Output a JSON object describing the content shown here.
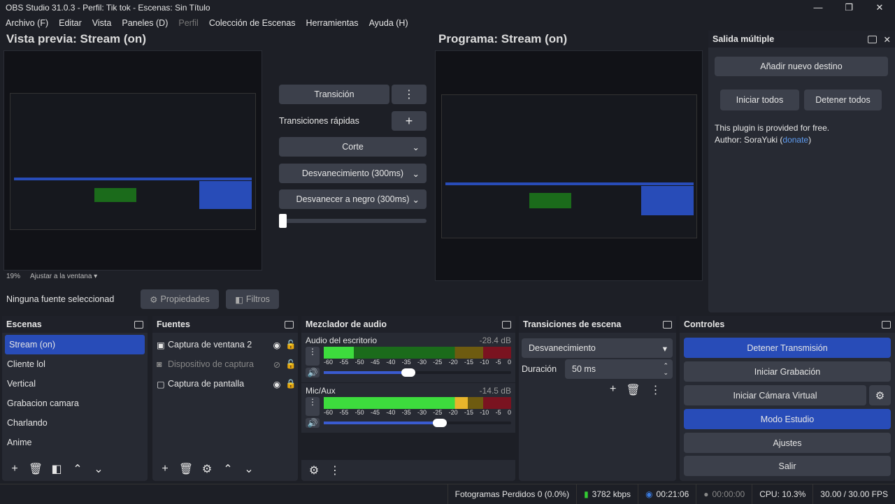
{
  "window": {
    "title": "OBS Studio 31.0.3 - Perfil: Tik tok - Escenas: Sin Título",
    "minimize": "—",
    "maximize": "❐",
    "close": "✕"
  },
  "menu": [
    "Archivo (F)",
    "Editar",
    "Vista",
    "Paneles (D)",
    "Perfil",
    "Colección de Escenas",
    "Herramientas",
    "Ayuda (H)"
  ],
  "preview": {
    "title": "Vista previa: Stream (on)",
    "zoom": "19%",
    "fit": "Ajustar a la ventana"
  },
  "program": {
    "title": "Programa: Stream (on)"
  },
  "transition_panel": {
    "transition": "Transición",
    "quick": "Transiciones rápidas",
    "items": [
      "Corte",
      "Desvanecimiento (300ms)",
      "Desvanecer a negro (300ms)"
    ]
  },
  "multi_output": {
    "title": "Salida múltiple",
    "add": "Añadir nuevo destino",
    "start_all": "Iniciar todos",
    "stop_all": "Detener todos",
    "info": "This plugin is provided for free.",
    "author": "Author: SoraYuki (",
    "donate": "donate",
    "close_paren": ")"
  },
  "source_bar": {
    "none": "Ninguna fuente seleccionad",
    "properties": "Propiedades",
    "filters": "Filtros"
  },
  "scenes": {
    "title": "Escenas",
    "items": [
      "Stream (on)",
      "Cliente lol",
      "Vertical",
      "Grabacion camara",
      "Charlando",
      "Anime"
    ],
    "selected": 0
  },
  "sources": {
    "title": "Fuentes",
    "items": [
      {
        "name": "Captura de ventana 2",
        "icon": "window-icon",
        "visible": true,
        "locked": false
      },
      {
        "name": "Dispositivo de captura",
        "icon": "camera-icon",
        "visible": false,
        "locked": false
      },
      {
        "name": "Captura de pantalla",
        "icon": "monitor-icon",
        "visible": true,
        "locked": true
      }
    ]
  },
  "mixer": {
    "title": "Mezclador de audio",
    "ticks": [
      "-60",
      "-55",
      "-50",
      "-45",
      "-40",
      "-35",
      "-30",
      "-25",
      "-20",
      "-15",
      "-10",
      "-5",
      "0"
    ],
    "channels": [
      {
        "name": "Audio del escritorio",
        "db": "-28.4 dB",
        "volume": 0.45,
        "level": 0.16
      },
      {
        "name": "Mic/Aux",
        "db": "-14.5 dB",
        "volume": 0.62,
        "level": 0.77
      }
    ]
  },
  "scene_transitions": {
    "title": "Transiciones de escena",
    "selected": "Desvanecimiento",
    "duration_label": "Duración",
    "duration": "50 ms"
  },
  "controls": {
    "title": "Controles",
    "stop_stream": "Detener Transmisión",
    "start_rec": "Iniciar Grabación",
    "virtual_cam": "Iniciar Cámara Virtual",
    "studio": "Modo Estudio",
    "settings": "Ajustes",
    "exit": "Salir"
  },
  "status": {
    "dropped": "Fotogramas Perdidos 0 (0.0%)",
    "bitrate": "3782 kbps",
    "stream_time": "00:21:06",
    "rec_time": "00:00:00",
    "cpu": "CPU: 10.3%",
    "fps": "30.00 / 30.00 FPS"
  },
  "colors": {
    "accent": "#284cb8",
    "bg": "#1d1f26",
    "panel": "#272a33",
    "button": "#3c404b"
  }
}
